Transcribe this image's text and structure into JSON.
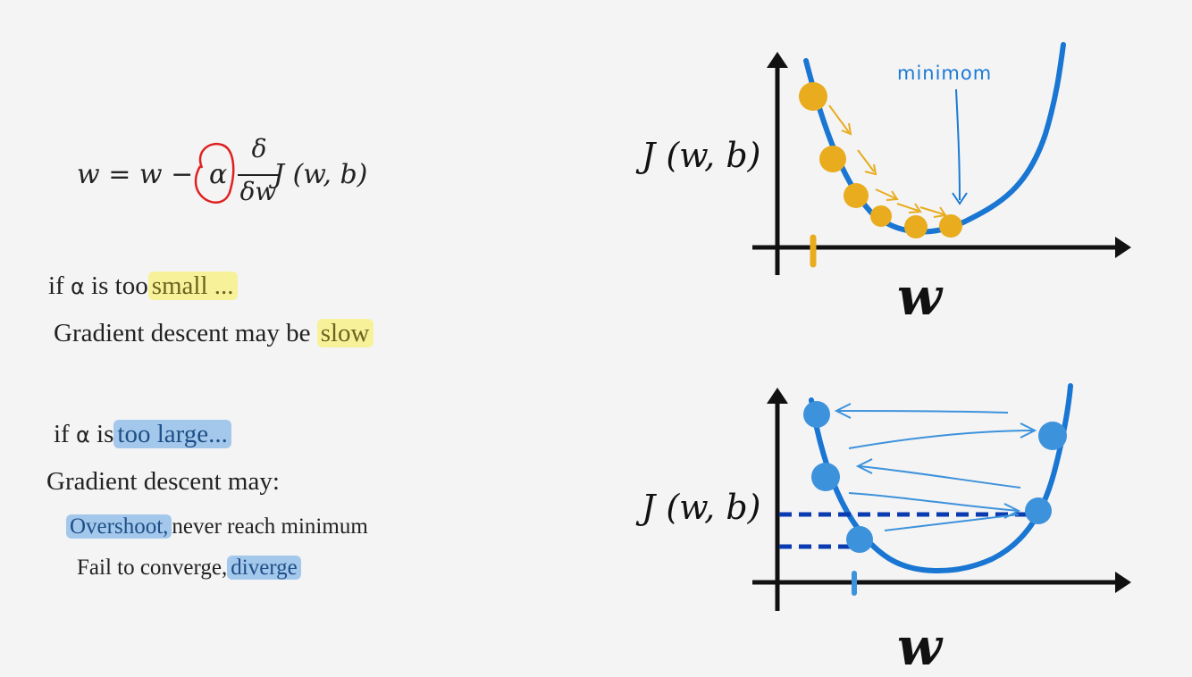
{
  "formula": {
    "lhs": "w = w −",
    "alpha": "α",
    "numerator": "δ",
    "denominator": "δw",
    "rhs": "J (w, b)"
  },
  "small_alpha": {
    "line1_prefix": "if",
    "line1_alpha": "α",
    "line1_mid": "is too",
    "line1_highlight": "small ...",
    "line2_prefix": "Gradient descent may be",
    "line2_highlight": "slow"
  },
  "large_alpha": {
    "line1_prefix": "if",
    "line1_alpha": "α",
    "line1_mid": "is",
    "line1_highlight": "too large...",
    "line2": "Gradient descent may:",
    "item1_highlight": "Overshoot,",
    "item1_rest": "never reach minimum",
    "item2_prefix": "Fail to converge,",
    "item2_highlight": "diverge"
  },
  "top_graph": {
    "ylabel": "J (w, b)",
    "xlabel": "w",
    "annotation": "minimom"
  },
  "bottom_graph": {
    "ylabel": "J (w, b)",
    "xlabel": "w"
  },
  "colors": {
    "curve": "#1976d2",
    "small_steps": "#e8ac1e",
    "large_steps": "#3d92dc",
    "dashed": "#0a3bb0",
    "alpha_circle": "#e02020"
  }
}
